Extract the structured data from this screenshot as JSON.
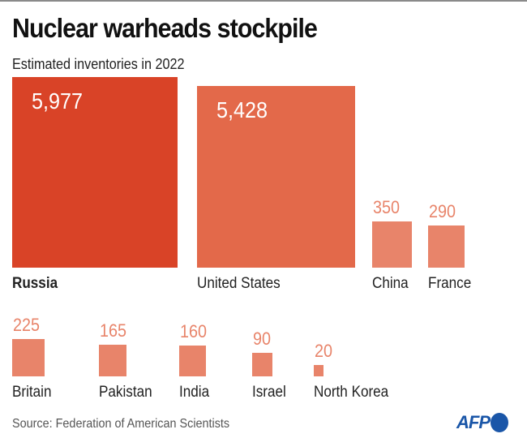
{
  "chart_data": {
    "type": "bar",
    "title": "Nuclear warheads stockpile",
    "subtitle": "Estimated inventories in 2022",
    "categories": [
      "Russia",
      "United States",
      "China",
      "France",
      "Britain",
      "Pakistan",
      "India",
      "Israel",
      "North Korea"
    ],
    "values": [
      5977,
      5428,
      350,
      290,
      225,
      165,
      160,
      90,
      20
    ],
    "value_labels": [
      "5,977",
      "5,428",
      "350",
      "290",
      "225",
      "165",
      "160",
      "90",
      "20"
    ],
    "encoding": "square area proportional to value",
    "source": "Source: Federation of American Scientists",
    "colors": {
      "russia": "#d94327",
      "united_states": "#e3694a",
      "others": "#e8846a"
    }
  },
  "logo": "AFP"
}
